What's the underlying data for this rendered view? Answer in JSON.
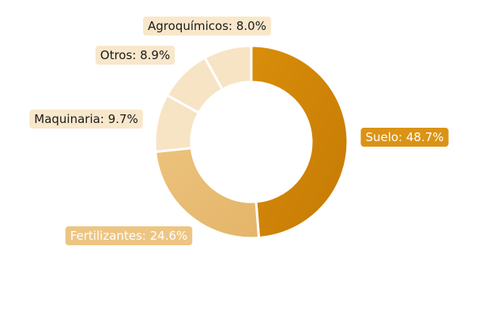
{
  "chart_data": {
    "type": "pie",
    "variant": "donut",
    "title": "",
    "slices": [
      {
        "label": "Suelo",
        "value": 48.7,
        "label_text": "Suelo: 48.7%",
        "color": "#d98d0a",
        "color_dark": "#c57a05",
        "label_color": "#ffffff"
      },
      {
        "label": "Fertilizantes",
        "value": 24.6,
        "label_text": "Fertilizantes: 24.6%",
        "color": "#ecc27c",
        "color_dark": "#e4b56a",
        "label_color": "#ffffff"
      },
      {
        "label": "Maquinaria",
        "value": 9.7,
        "label_text": "Maquinaria: 9.7%",
        "color": "#f7e4c5",
        "color_dark": "#f7e4c5",
        "label_color": "#1a1a1a"
      },
      {
        "label": "Otros",
        "value": 8.9,
        "label_text": "Otros: 8.9%",
        "color": "#f7e4c5",
        "color_dark": "#f7e4c5",
        "label_color": "#1a1a1a"
      },
      {
        "label": "Agroquímicos",
        "value": 8.0,
        "label_text": "Agroquímicos: 8.0%",
        "color": "#f7e4c5",
        "color_dark": "#f7e4c5",
        "label_color": "#1a1a1a"
      }
    ],
    "legend": "none"
  }
}
